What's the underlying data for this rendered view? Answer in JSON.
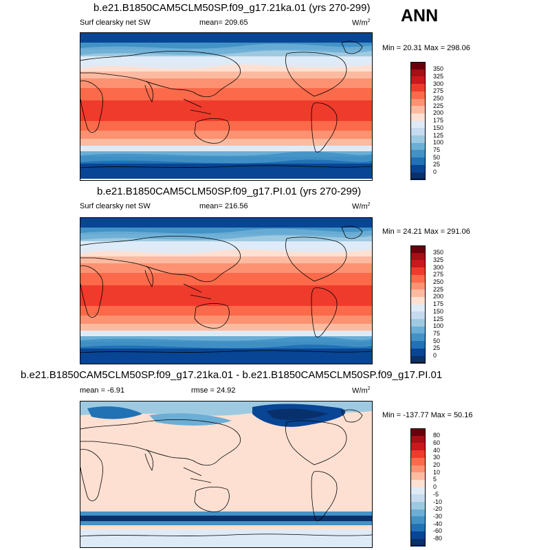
{
  "season": "ANN",
  "panels": [
    {
      "title": "b.e21.B1850CAM5CLM50SP.f09_g17.21ka.01 (yrs 270-299)",
      "left_label": "Surf clearsky net SW",
      "center_label": "mean= 209.65",
      "unit": "W/m",
      "unit_sup": "2",
      "minmax": "Min =  20.31 Max = 298.06",
      "kind": "abs",
      "colorbar": {
        "labels": [
          "350",
          "325",
          "300",
          "275",
          "250",
          "225",
          "200",
          "175",
          "150",
          "125",
          "100",
          "75",
          "50",
          "25",
          "0"
        ]
      }
    },
    {
      "title": "b.e21.B1850CAM5CLM50SP.f09_g17.PI.01 (yrs 270-299)",
      "left_label": "Surf clearsky net SW",
      "center_label": "mean= 216.56",
      "unit": "W/m",
      "unit_sup": "2",
      "minmax": "Min =  24.21 Max = 291.06",
      "kind": "abs",
      "colorbar": {
        "labels": [
          "350",
          "325",
          "300",
          "275",
          "250",
          "225",
          "200",
          "175",
          "150",
          "125",
          "100",
          "75",
          "50",
          "25",
          "0"
        ]
      }
    },
    {
      "title": "b.e21.B1850CAM5CLM50SP.f09_g17.21ka.01 - b.e21.B1850CAM5CLM50SP.f09_g17.PI.01",
      "left_label": "mean =  -6.91",
      "center_label": "rmse =  24.92",
      "unit": "W/m",
      "unit_sup": "2",
      "minmax": "Min = -137.77 Max =  50.16",
      "kind": "diff",
      "colorbar": {
        "labels": [
          "80",
          "60",
          "40",
          "30",
          "20",
          "10",
          "5",
          "0",
          "-5",
          "-10",
          "-20",
          "-30",
          "-40",
          "-60",
          "-80"
        ]
      }
    }
  ],
  "colors": {
    "abs_scale": [
      "#67000d",
      "#a50f15",
      "#cb181d",
      "#ef3b2c",
      "#fb6a4a",
      "#fc9272",
      "#fcbba1",
      "#fee0d2",
      "#deebf7",
      "#c6dbef",
      "#9ecae1",
      "#6baed6",
      "#4292c6",
      "#2171b5",
      "#084594",
      "#08306b"
    ],
    "diff_scale": [
      "#67000d",
      "#a50f15",
      "#cb181d",
      "#ef3b2c",
      "#fb6a4a",
      "#fc9272",
      "#fcbba1",
      "#fee0d2",
      "#deebf7",
      "#c6dbef",
      "#9ecae1",
      "#6baed6",
      "#4292c6",
      "#2171b5",
      "#084594",
      "#08306b"
    ],
    "coastline": "#000000"
  }
}
